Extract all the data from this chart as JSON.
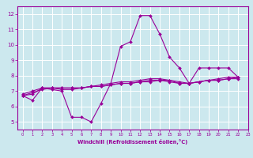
{
  "background_color": "#cce8ee",
  "grid_color": "#ffffff",
  "line_color": "#990099",
  "xlabel": "Windchill (Refroidissement éolien,°C)",
  "xlim": [
    -0.5,
    23
  ],
  "ylim": [
    4.5,
    12.5
  ],
  "yticks": [
    5,
    6,
    7,
    8,
    9,
    10,
    11,
    12
  ],
  "xticks": [
    0,
    1,
    2,
    3,
    4,
    5,
    6,
    7,
    8,
    9,
    10,
    11,
    12,
    13,
    14,
    15,
    16,
    17,
    18,
    19,
    20,
    21,
    22,
    23
  ],
  "series": [
    [
      6.7,
      6.4,
      7.2,
      7.1,
      7.0,
      5.3,
      5.3,
      5.0,
      6.2,
      7.5,
      9.9,
      10.2,
      11.9,
      11.9,
      10.7,
      9.2,
      8.5,
      7.5,
      8.5,
      8.5,
      8.5,
      8.5,
      7.9
    ],
    [
      6.7,
      6.8,
      7.2,
      7.2,
      7.1,
      7.1,
      7.2,
      7.3,
      7.4,
      7.5,
      7.6,
      7.6,
      7.7,
      7.8,
      7.8,
      7.7,
      7.6,
      7.5,
      7.6,
      7.7,
      7.8,
      7.9,
      7.9
    ],
    [
      6.7,
      6.9,
      7.1,
      7.2,
      7.2,
      7.2,
      7.2,
      7.3,
      7.3,
      7.4,
      7.5,
      7.5,
      7.6,
      7.7,
      7.7,
      7.7,
      7.5,
      7.5,
      7.6,
      7.7,
      7.7,
      7.8,
      7.8
    ],
    [
      6.8,
      7.0,
      7.2,
      7.2,
      7.2,
      7.2,
      7.2,
      7.3,
      7.3,
      7.4,
      7.5,
      7.5,
      7.6,
      7.6,
      7.7,
      7.6,
      7.5,
      7.5,
      7.6,
      7.7,
      7.7,
      7.8,
      7.9
    ]
  ],
  "figsize": [
    3.2,
    2.0
  ],
  "dpi": 100
}
